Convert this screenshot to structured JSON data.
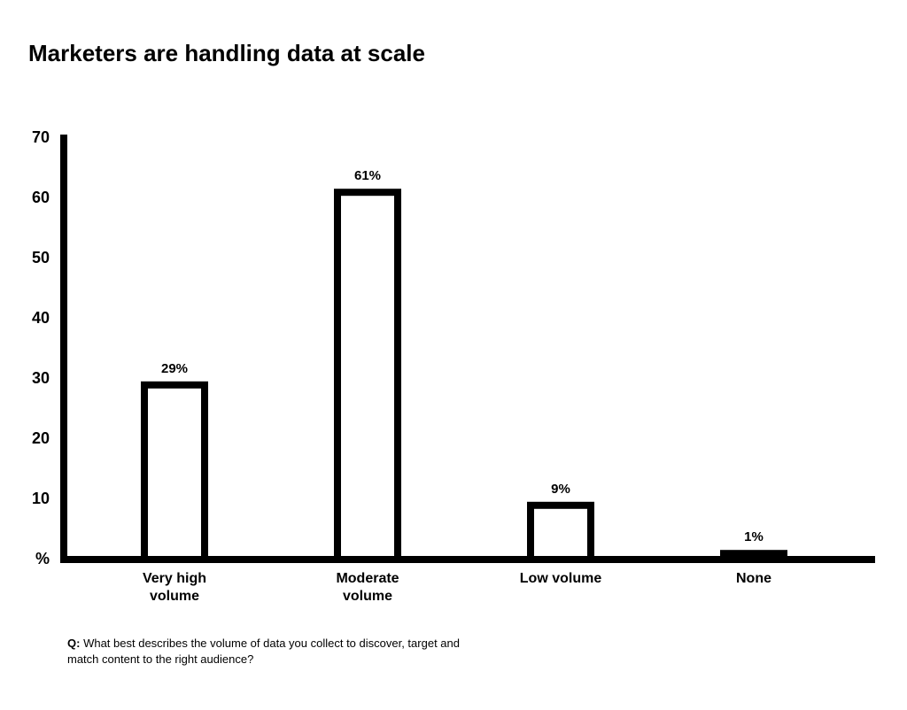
{
  "chart_data": {
    "type": "bar",
    "title": "Marketers are handling data at scale",
    "categories": [
      "Very high volume",
      "Moderate volume",
      "Low volume",
      "None"
    ],
    "values": [
      29,
      61,
      9,
      1
    ],
    "value_labels": [
      "29%",
      "61%",
      "9%",
      "1%"
    ],
    "color": "#ffffff",
    "ylim": [
      0,
      70
    ],
    "yticks": [
      {
        "value": 0,
        "label": "%"
      },
      10,
      20,
      30,
      40,
      50,
      60,
      70
    ],
    "footnote_label": "Q:",
    "footnote": "What best describes the volume of data you collect to discover, target and match content to the right audience?"
  }
}
